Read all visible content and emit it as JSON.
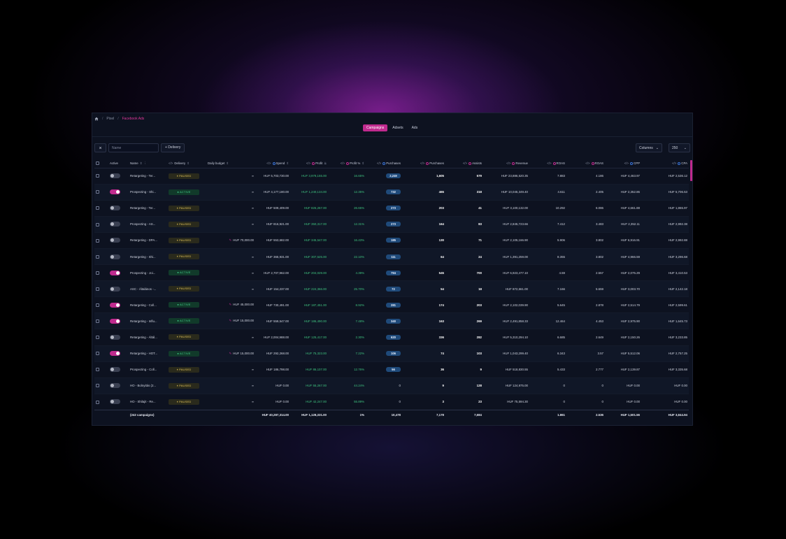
{
  "breadcrumb": {
    "items": [
      "Pixel",
      "Facebook Ads"
    ]
  },
  "tabs": [
    {
      "label": "Campaigns",
      "active": true
    },
    {
      "label": "Adsets",
      "active": false
    },
    {
      "label": "Ads",
      "active": false
    }
  ],
  "toolbar": {
    "close_label": "×",
    "name_placeholder": "Name",
    "delivery_label": "+ Delivery",
    "columns_label": "Columns",
    "rows_value": "250"
  },
  "columns": {
    "active": "Active",
    "name": "Name",
    "delivery": "Delivery",
    "daily_budget": "Daily budget",
    "spend": "Spend",
    "profit": "Profit",
    "profit_pct": "Profit %",
    "purchases_a": "Purchases",
    "purchases_b": "Purchases",
    "assists": "Assists",
    "revenue": "Revenue",
    "roas_a": "ROAS",
    "roas_b": "ROAS",
    "cpp": "CPP",
    "cpa": "CPA"
  },
  "rows": [
    {
      "active": false,
      "name": "Retargeting - Ter...",
      "delivery": "PAUSED",
      "budget": "∞",
      "spend": "HUF 5,703,730.00",
      "profit": "HUF 3,978,155.00",
      "profit_pct": "16.65%",
      "purchases_a": "2,249",
      "purchases_b": "1,605",
      "assists": "579",
      "revenue": "HUF 23,886,520.35",
      "roas_a": "7.883",
      "roas_b": "4.186",
      "cpp": "HUF 4,463.97",
      "cpa": "HUF 2,536.12"
    },
    {
      "active": true,
      "name": "Prospecting - Shi...",
      "delivery": "ACTIVE",
      "budget": "∞",
      "spend": "HUF 4,177,180.00",
      "profit": "HUF 1,240,134.00",
      "profit_pct": "12.35%",
      "purchases_a": "732",
      "purchases_b": "465",
      "assists": "318",
      "revenue": "HUF 10,045,349.40",
      "roas_a": "4.611",
      "roas_b": "2.405",
      "cpp": "HUF 2,352.86",
      "cpa": "HUF 5,706.53"
    },
    {
      "active": false,
      "name": "Retargeting - Ter...",
      "delivery": "PAUSED",
      "budget": "∞",
      "spend": "HUF 509,409.00",
      "profit": "HUF 826,267.00",
      "profit_pct": "26.65%",
      "purchases_a": "273",
      "purchases_b": "203",
      "assists": "41",
      "revenue": "HUF 3,100,132.00",
      "roas_a": "10.292",
      "roas_b": "6.086",
      "cpp": "HUF 4,661.88",
      "cpa": "HUF 1,865.97"
    },
    {
      "active": false,
      "name": "Prospecting - AS...",
      "delivery": "PAUSED",
      "budget": "∞",
      "spend": "HUF 816,921.00",
      "profit": "HUF 350,317.00",
      "profit_pct": "12.31%",
      "purchases_a": "273",
      "purchases_b": "164",
      "assists": "83",
      "revenue": "HUF 2,845,723.66",
      "roas_a": "7.412",
      "roas_b": "3.483",
      "cpp": "HUF 2,352.11",
      "cpa": "HUF 2,992.38"
    },
    {
      "active": false,
      "name": "Retargeting - DPA...",
      "delivery": "PAUSED",
      "budget": "HUF 70,000.00",
      "spend": "HUF 553,682.00",
      "profit": "HUF 345,547.00",
      "profit_pct": "16.43%",
      "purchases_a": "185",
      "purchases_b": "130",
      "assists": "71",
      "revenue": "HUF 2,105,166.90",
      "roas_a": "5.906",
      "roas_b": "3.802",
      "cpp": "HUF 6,916.91",
      "cpa": "HUF 2,992.88"
    },
    {
      "active": false,
      "name": "Retargeting - Shi...",
      "delivery": "PAUSED",
      "budget": "∞",
      "spend": "HUF 365,931.00",
      "profit": "HUF 307,525.00",
      "profit_pct": "22.10%",
      "purchases_a": "111",
      "purchases_b": "64",
      "assists": "24",
      "revenue": "HUF 1,391,259.00",
      "roas_a": "8.355",
      "roas_b": "3.802",
      "cpp": "HUF 4,966.59",
      "cpa": "HUF 3,296.68"
    },
    {
      "active": true,
      "name": "Prospecting - Joi...",
      "delivery": "ACTIVE",
      "budget": "∞",
      "spend": "HUF 2,707,962.00",
      "profit": "HUF 204,029.00",
      "profit_pct": "4.39%",
      "purchases_a": "794",
      "purchases_b": "545",
      "assists": "700",
      "revenue": "HUF 6,923,477.10",
      "roas_a": "4.59",
      "roas_b": "2.557",
      "cpp": "HUF 2,075.29",
      "cpa": "HUF 3,410.53"
    },
    {
      "active": false,
      "name": "ASC - Általános -...",
      "delivery": "PAUSED",
      "budget": "∞",
      "spend": "HUF 154,237.00",
      "profit": "HUF 224,366.00",
      "profit_pct": "25.70%",
      "purchases_a": "72",
      "purchases_b": "54",
      "assists": "18",
      "revenue": "HUF 872,661.00",
      "roas_a": "7.166",
      "roas_b": "5.659",
      "cpp": "HUF 3,003.70",
      "cpa": "HUF 2,142.18"
    },
    {
      "active": true,
      "name": "Retargeting - Coll...",
      "delivery": "ACTIVE",
      "budget": "HUF 45,000.00",
      "spend": "HUF 730,491.00",
      "profit": "HUF 187,451.00",
      "profit_pct": "8.92%",
      "purchases_a": "281",
      "purchases_b": "174",
      "assists": "203",
      "revenue": "HUF 2,102,039.90",
      "roas_a": "5.645",
      "roas_b": "2.878",
      "cpp": "HUF 2,514.79",
      "cpa": "HUF 2,599.61"
    },
    {
      "active": true,
      "name": "Retargeting - Influ...",
      "delivery": "ACTIVE",
      "budget": "HUF 15,000.00",
      "spend": "HUF 559,547.00",
      "profit": "HUF 186,490.00",
      "profit_pct": "7.48%",
      "purchases_a": "340",
      "purchases_b": "163",
      "assists": "269",
      "revenue": "HUF 2,491,858.33",
      "roas_a": "12.464",
      "roas_b": "4.453",
      "cpp": "HUF 2,975.90",
      "cpa": "HUF 1,645.73"
    },
    {
      "active": false,
      "name": "Retargeting - Áltál...",
      "delivery": "PAUSED",
      "budget": "∞",
      "spend": "HUF 2,004,988.00",
      "profit": "HUF 125,417.00",
      "profit_pct": "2.30%",
      "purchases_a": "620",
      "purchases_b": "336",
      "assists": "282",
      "revenue": "HUF 5,310,294.10",
      "roas_a": "6.685",
      "roas_b": "2.649",
      "cpp": "HUF 2,150.26",
      "cpa": "HUF 3,233.85"
    },
    {
      "active": true,
      "name": "Retargeting - HOT...",
      "delivery": "ACTIVE",
      "budget": "HUF 15,000.00",
      "spend": "HUF 292,268.00",
      "profit": "HUF 75,323.00",
      "profit_pct": "7.22%",
      "purchases_a": "106",
      "purchases_b": "74",
      "assists": "103",
      "revenue": "HUF 1,043,299.40",
      "roas_a": "6.343",
      "roas_b": "3.57",
      "cpp": "HUF 5,512.06",
      "cpa": "HUF 2,757.25"
    },
    {
      "active": false,
      "name": "Prospecting - Coll...",
      "delivery": "PAUSED",
      "budget": "∞",
      "spend": "HUF 186,798.00",
      "profit": "HUF 86,107.00",
      "profit_pct": "12.76%",
      "purchases_a": "56",
      "purchases_b": "36",
      "assists": "9",
      "revenue": "HUF 518,830.55",
      "roas_a": "5.433",
      "roas_b": "2.777",
      "cpp": "HUF 2,139.87",
      "cpa": "HUF 3,335.68"
    },
    {
      "active": false,
      "name": "HO - Bolnyitás (2...",
      "delivery": "PAUSED",
      "budget": "∞",
      "spend": "HUF 0.00",
      "profit": "HUF 55,267.00",
      "profit_pct": "44.24%",
      "purchases_a": "0",
      "purchases_b": "9",
      "assists": "128",
      "revenue": "HUF 124,975.00",
      "roas_a": "0",
      "roas_b": "0",
      "cpp": "HUF 0.00",
      "cpa": "HUF 0.00"
    },
    {
      "active": false,
      "name": "HO - Shilajit - Re...",
      "delivery": "PAUSED",
      "budget": "∞",
      "spend": "HUF 0.00",
      "profit": "HUF 42,247.00",
      "profit_pct": "55.89%",
      "purchases_a": "0",
      "purchases_b": "3",
      "assists": "23",
      "revenue": "HUF 75,594.30",
      "roas_a": "0",
      "roas_b": "0",
      "cpp": "HUF 0.00",
      "cpa": "HUF 0.00"
    }
  ],
  "totals": {
    "name": "(242 campaigns)",
    "spend": "HUF 40,287,314.00",
    "profit": "HUF 1,128,331.00",
    "profit_pct": "1%",
    "purchases_a": "10,478",
    "purchases_b": "7,178",
    "assists": "7,684",
    "roas_a": "1.861",
    "roas_b": "2.536",
    "cpp": "HUF 1,501.56",
    "cpa": "HUF 3,844.94"
  }
}
